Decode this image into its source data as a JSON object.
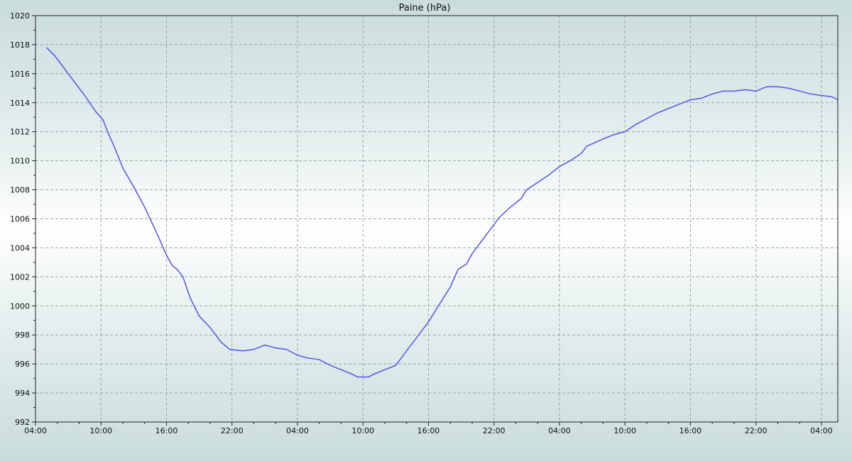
{
  "chart_data": {
    "type": "line",
    "title": "Paine (hPa)",
    "xlabel": "",
    "ylabel": "",
    "ylim": [
      992,
      1020
    ],
    "xlim": [
      0,
      73.5
    ],
    "yticks": [
      992,
      994,
      996,
      998,
      1000,
      1002,
      1004,
      1006,
      1008,
      1010,
      1012,
      1014,
      1016,
      1018,
      1020
    ],
    "xticks": [
      {
        "label": "04:00",
        "x": 0
      },
      {
        "label": "10:00",
        "x": 6
      },
      {
        "label": "16:00",
        "x": 12
      },
      {
        "label": "22:00",
        "x": 18
      },
      {
        "label": "04:00",
        "x": 24
      },
      {
        "label": "10:00",
        "x": 30
      },
      {
        "label": "16:00",
        "x": 36
      },
      {
        "label": "22:00",
        "x": 42
      },
      {
        "label": "04:00",
        "x": 48
      },
      {
        "label": "10:00",
        "x": 54
      },
      {
        "label": "16:00",
        "x": 60
      },
      {
        "label": "22:00",
        "x": 66
      },
      {
        "label": "04:00",
        "x": 72
      }
    ],
    "grid": true,
    "legend": "none",
    "series": [
      {
        "color": "#5b5ee6",
        "points": [
          [
            1.0,
            1017.8
          ],
          [
            1.8,
            1017.2
          ],
          [
            2.5,
            1016.5
          ],
          [
            3.5,
            1015.5
          ],
          [
            4.5,
            1014.5
          ],
          [
            5.5,
            1013.4
          ],
          [
            6.2,
            1012.8
          ],
          [
            6.6,
            1012.0
          ],
          [
            7.2,
            1011.0
          ],
          [
            8.0,
            1009.5
          ],
          [
            9.0,
            1008.2
          ],
          [
            10.0,
            1006.8
          ],
          [
            11.0,
            1005.2
          ],
          [
            12.0,
            1003.5
          ],
          [
            12.5,
            1002.8
          ],
          [
            13.0,
            1002.5
          ],
          [
            13.5,
            1002.0
          ],
          [
            14.2,
            1000.5
          ],
          [
            15.0,
            999.3
          ],
          [
            16.0,
            998.5
          ],
          [
            17.0,
            997.5
          ],
          [
            17.8,
            997.0
          ],
          [
            19.0,
            996.9
          ],
          [
            20.0,
            997.0
          ],
          [
            21.0,
            997.3
          ],
          [
            22.0,
            997.1
          ],
          [
            23.0,
            997.0
          ],
          [
            24.0,
            996.6
          ],
          [
            25.0,
            996.4
          ],
          [
            26.0,
            996.3
          ],
          [
            27.0,
            995.9
          ],
          [
            28.0,
            995.6
          ],
          [
            29.0,
            995.3
          ],
          [
            29.5,
            995.1
          ],
          [
            30.5,
            995.1
          ],
          [
            31.0,
            995.3
          ],
          [
            32.0,
            995.6
          ],
          [
            33.0,
            995.9
          ],
          [
            34.0,
            996.9
          ],
          [
            35.0,
            997.9
          ],
          [
            36.0,
            998.9
          ],
          [
            37.0,
            1000.1
          ],
          [
            38.0,
            1001.3
          ],
          [
            38.7,
            1002.5
          ],
          [
            39.5,
            1002.9
          ],
          [
            40.0,
            1003.6
          ],
          [
            41.0,
            1004.6
          ],
          [
            42.0,
            1005.6
          ],
          [
            42.5,
            1006.1
          ],
          [
            43.5,
            1006.8
          ],
          [
            44.5,
            1007.4
          ],
          [
            45.0,
            1008.0
          ],
          [
            46.0,
            1008.5
          ],
          [
            47.0,
            1009.0
          ],
          [
            48.0,
            1009.6
          ],
          [
            49.0,
            1010.0
          ],
          [
            50.0,
            1010.5
          ],
          [
            50.5,
            1011.0
          ],
          [
            52.0,
            1011.5
          ],
          [
            53.0,
            1011.8
          ],
          [
            54.0,
            1012.0
          ],
          [
            55.0,
            1012.5
          ],
          [
            56.0,
            1012.9
          ],
          [
            57.0,
            1013.3
          ],
          [
            58.0,
            1013.6
          ],
          [
            59.0,
            1013.9
          ],
          [
            60.0,
            1014.2
          ],
          [
            61.0,
            1014.3
          ],
          [
            62.0,
            1014.6
          ],
          [
            63.0,
            1014.8
          ],
          [
            64.0,
            1014.8
          ],
          [
            65.0,
            1014.9
          ],
          [
            66.0,
            1014.8
          ],
          [
            67.0,
            1015.1
          ],
          [
            68.0,
            1015.1
          ],
          [
            69.0,
            1015.0
          ],
          [
            70.0,
            1014.8
          ],
          [
            71.0,
            1014.6
          ],
          [
            72.0,
            1014.5
          ],
          [
            73.0,
            1014.4
          ],
          [
            73.5,
            1014.2
          ]
        ]
      }
    ]
  }
}
